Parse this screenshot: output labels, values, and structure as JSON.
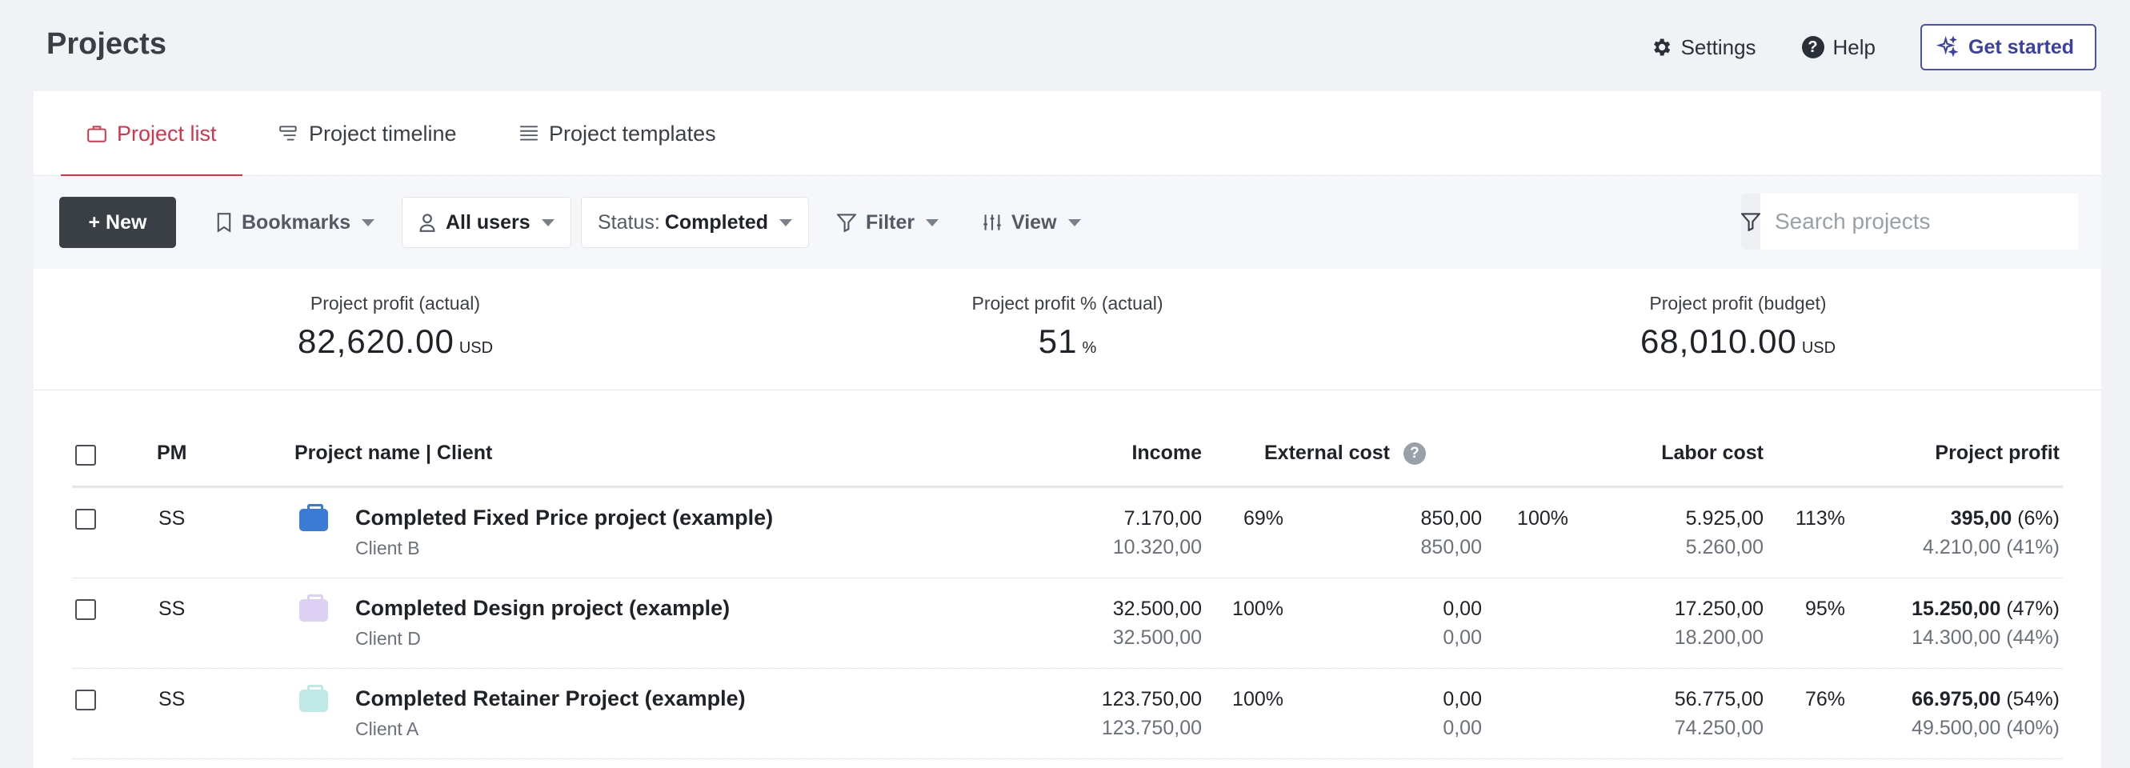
{
  "header": {
    "title": "Projects",
    "settings_label": "Settings",
    "help_label": "Help",
    "get_started_label": "Get started"
  },
  "tabs": [
    {
      "label": "Project list",
      "active": true
    },
    {
      "label": "Project timeline",
      "active": false
    },
    {
      "label": "Project templates",
      "active": false
    }
  ],
  "toolbar": {
    "new_label": "+ New",
    "bookmarks_label": "Bookmarks",
    "users_label": "All users",
    "status_prefix": "Status:",
    "status_value": "Completed",
    "filter_label": "Filter",
    "view_label": "View",
    "search_placeholder": "Search projects"
  },
  "stats": [
    {
      "label": "Project profit (actual)",
      "value": "82,620.00",
      "unit": "USD"
    },
    {
      "label": "Project profit % (actual)",
      "value": "51",
      "unit": "%"
    },
    {
      "label": "Project profit (budget)",
      "value": "68,010.00",
      "unit": "USD"
    }
  ],
  "table": {
    "headers": {
      "pm": "PM",
      "name": "Project name | Client",
      "income": "Income",
      "external": "External cost",
      "labor": "Labor cost",
      "profit": "Project profit"
    },
    "rows": [
      {
        "pm": "SS",
        "name": "Completed Fixed Price project (example)",
        "client": "Client B",
        "color": "#3a7bd5",
        "income": "7.170,00",
        "income_budget": "10.320,00",
        "income_pct": "69%",
        "external": "850,00",
        "external_budget": "850,00",
        "external_pct": "100%",
        "labor": "5.925,00",
        "labor_budget": "5.260,00",
        "labor_pct": "113%",
        "profit": "395,00",
        "profit_pct": "(6%)",
        "profit_budget": "4.210,00 (41%)"
      },
      {
        "pm": "SS",
        "name": "Completed Design project (example)",
        "client": "Client D",
        "color": "#dcd0f5",
        "income": "32.500,00",
        "income_budget": "32.500,00",
        "income_pct": "100%",
        "external": "0,00",
        "external_budget": "0,00",
        "external_pct": "",
        "labor": "17.250,00",
        "labor_budget": "18.200,00",
        "labor_pct": "95%",
        "profit": "15.250,00",
        "profit_pct": "(47%)",
        "profit_budget": "14.300,00 (44%)"
      },
      {
        "pm": "SS",
        "name": "Completed Retainer Project (example)",
        "client": "Client A",
        "color": "#bfe8e6",
        "income": "123.750,00",
        "income_budget": "123.750,00",
        "income_pct": "100%",
        "external": "0,00",
        "external_budget": "0,00",
        "external_pct": "",
        "labor": "56.775,00",
        "labor_budget": "74.250,00",
        "labor_pct": "76%",
        "profit": "66.975,00",
        "profit_pct": "(54%)",
        "profit_budget": "49.500,00 (40%)"
      }
    ]
  }
}
